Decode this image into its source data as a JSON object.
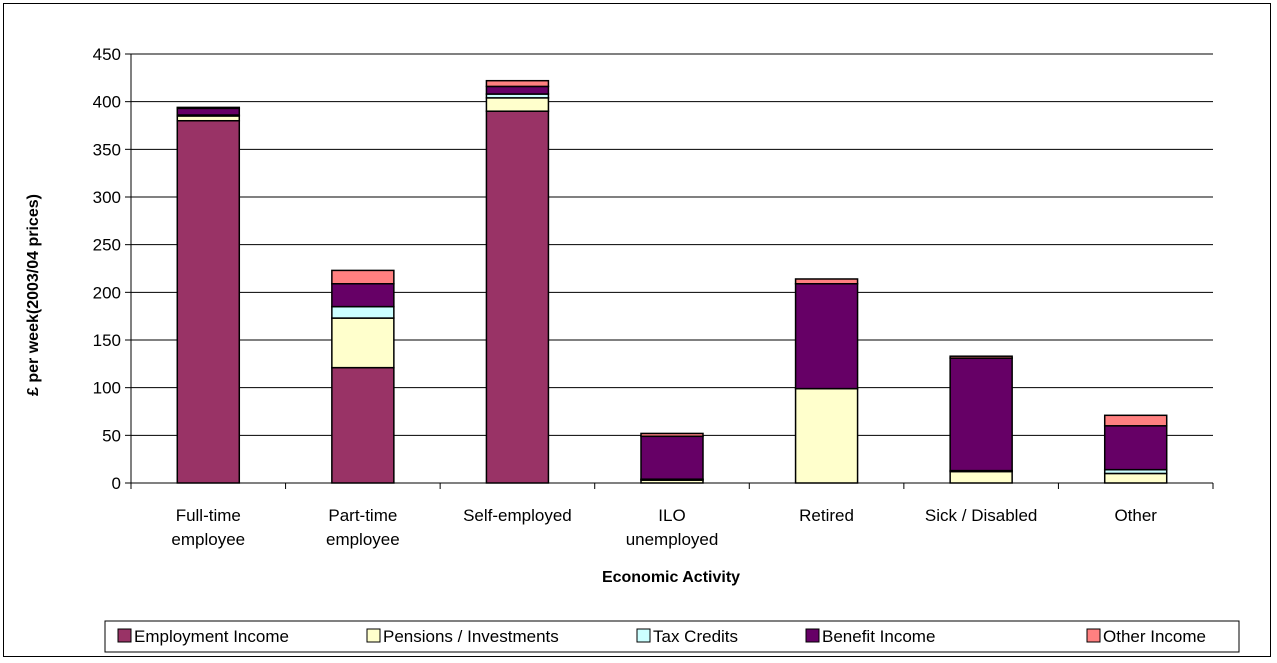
{
  "chart_data": {
    "type": "bar",
    "stacked": true,
    "title": "",
    "xlabel": "Economic Activity",
    "ylabel": "£ per week(2003/04 prices)",
    "ylim": [
      0,
      450
    ],
    "yticks": [
      0,
      50,
      100,
      150,
      200,
      250,
      300,
      350,
      400,
      450
    ],
    "grid": true,
    "legend_position": "bottom",
    "categories": [
      [
        "Full-time",
        "employee"
      ],
      [
        "Part-time",
        "employee"
      ],
      [
        "Self-employed"
      ],
      [
        "ILO",
        "unemployed"
      ],
      [
        "Retired"
      ],
      [
        "Sick / Disabled"
      ],
      [
        "Other"
      ]
    ],
    "series": [
      {
        "name": "Employment Income",
        "color": "#993366",
        "values": [
          380,
          121,
          390,
          0,
          0,
          0,
          0
        ]
      },
      {
        "name": "Pensions / Investments",
        "color": "#FFFFCC",
        "values": [
          5,
          52,
          14,
          3,
          99,
          12,
          10
        ]
      },
      {
        "name": "Tax Credits",
        "color": "#CCFFFF",
        "values": [
          1,
          12,
          4,
          1,
          0,
          1,
          4
        ]
      },
      {
        "name": "Benefit Income",
        "color": "#660066",
        "values": [
          7,
          24,
          8,
          45,
          110,
          118,
          46
        ]
      },
      {
        "name": "Other Income",
        "color": "#FF8080",
        "values": [
          1,
          14,
          6,
          3,
          5,
          2,
          11
        ]
      }
    ]
  }
}
